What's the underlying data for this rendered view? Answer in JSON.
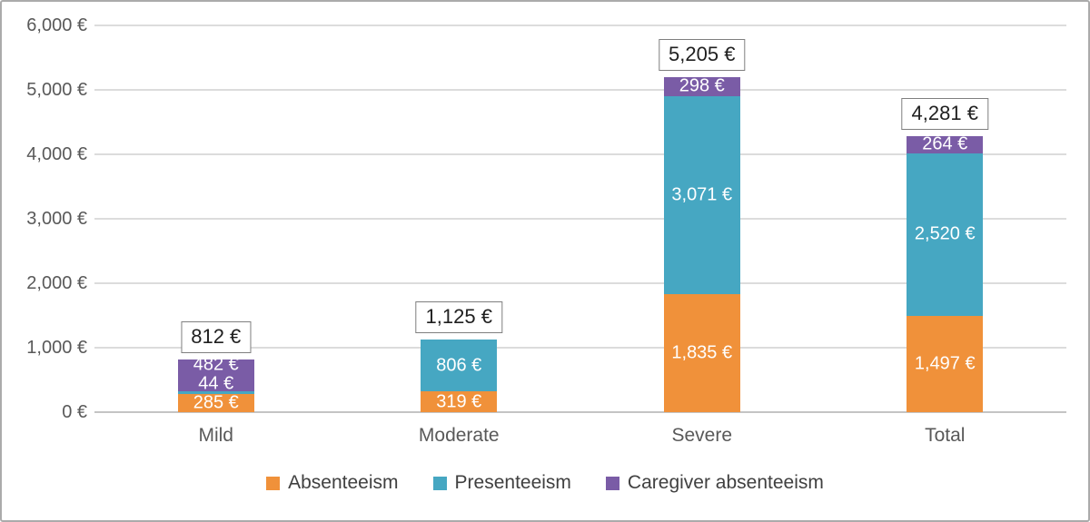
{
  "chart_data": {
    "type": "bar",
    "stacked": true,
    "title": "",
    "xlabel": "",
    "ylabel": "",
    "categories": [
      "Mild",
      "Moderate",
      "Severe",
      "Total"
    ],
    "series": [
      {
        "name": "Absenteeism",
        "color": "#F0913A",
        "values": [
          285,
          319,
          1835,
          1497
        ],
        "labels": [
          "285 €",
          "319 €",
          "1,835 €",
          "1,497 €"
        ]
      },
      {
        "name": "Presenteeism",
        "color": "#46A7C2",
        "values": [
          44,
          806,
          3071,
          2520
        ],
        "labels": [
          "44 €",
          "806 €",
          "3,071 €",
          "2,520 €"
        ]
      },
      {
        "name": "Caregiver absenteeism",
        "color": "#7A5CA6",
        "values": [
          482,
          0,
          298,
          264
        ],
        "labels": [
          "482 €",
          "",
          "298 €",
          "264 €"
        ]
      }
    ],
    "totals_values": [
      812,
      1125,
      5205,
      4281
    ],
    "totals_labels": [
      "812 €",
      "1,125 €",
      "5,205 €",
      "4,281 €"
    ],
    "y_axis": {
      "min": 0,
      "max": 6000,
      "step": 1000,
      "tick_labels": [
        "0 €",
        "1,000 €",
        "2,000 €",
        "3,000 €",
        "4,000 €",
        "5,000 €",
        "6,000 €"
      ]
    },
    "grid": true,
    "legend_position": "bottom",
    "colors": {
      "gridline": "#dcdcdc",
      "axis_line": "#c4c4c4",
      "axis_text": "#595959",
      "segment_text": "#ffffff",
      "total_text": "#1f1f1f",
      "total_box_border": "#7f7f7f"
    }
  }
}
